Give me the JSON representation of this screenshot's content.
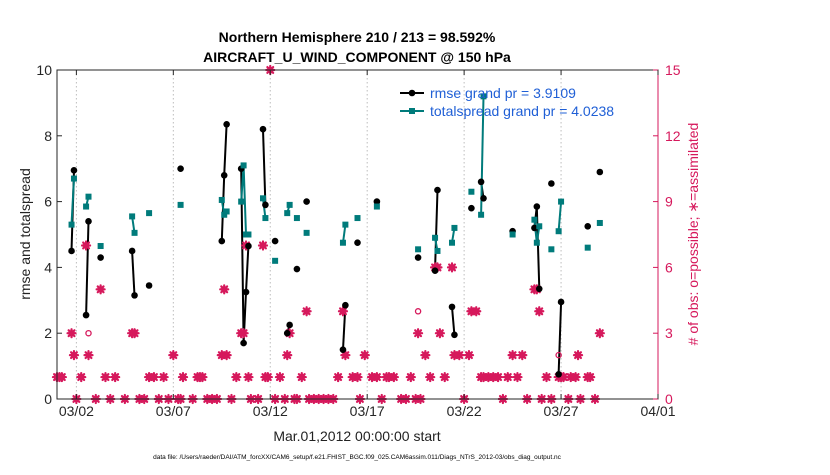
{
  "chart_data": {
    "type": "line",
    "title": "Northern Hemisphere 210 / 213 = 98.592%",
    "subtitle": "AIRCRAFT_U_WIND_COMPONENT @ 150 hPa",
    "xlabel": "Mar.01,2012 00:00:00 start",
    "ylabel": "rmse and totalspread",
    "y2label": "# of obs: o=possible; ∗=assimilated",
    "footnote": "data file: /Users/raeder/DAI/ATM_forcXX/CAM6_setup/f.e21.FHIST_BGC.f09_025.CAM6assim.011/Diags_NTrS_2012-03/obs_diag_output.nc",
    "xlim": [
      0,
      31
    ],
    "ylim": [
      0,
      10
    ],
    "y2lim": [
      0,
      15
    ],
    "xticks": [
      1,
      6,
      11,
      16,
      21,
      26,
      31
    ],
    "xtick_labels": [
      "03/02",
      "03/07",
      "03/12",
      "03/17",
      "03/22",
      "03/27",
      "04/01"
    ],
    "yticks": [
      0,
      2,
      4,
      6,
      8,
      10
    ],
    "y2ticks": [
      0,
      3,
      6,
      9,
      12,
      15
    ],
    "grid": "vertical dotted",
    "legend_position": "top-right",
    "colors": {
      "rmse": "#000000",
      "spread": "#007b7b",
      "obs": "#d6195c",
      "legend_text": "#1f5fd6"
    },
    "series": [
      {
        "name": "rmse",
        "legend": "rmse grand pr = 3.9109",
        "points": [
          [
            0.75,
            4.5
          ],
          [
            0.875,
            6.95
          ],
          [
            1.5,
            2.55
          ],
          [
            1.625,
            5.4
          ],
          [
            2.25,
            4.3
          ],
          [
            3.875,
            4.5
          ],
          [
            4.0,
            3.15
          ],
          [
            4.75,
            3.45
          ],
          [
            6.375,
            7.0
          ],
          [
            8.5,
            4.8
          ],
          [
            8.625,
            6.8
          ],
          [
            8.75,
            8.35
          ],
          [
            9.5,
            7.0
          ],
          [
            9.625,
            1.7
          ],
          [
            9.75,
            3.25
          ],
          [
            9.875,
            4.65
          ],
          [
            10.625,
            8.2
          ],
          [
            10.75,
            5.9
          ],
          [
            11.25,
            4.8
          ],
          [
            11.875,
            2.0
          ],
          [
            12.0,
            2.25
          ],
          [
            12.375,
            3.95
          ],
          [
            12.875,
            6.0
          ],
          [
            14.75,
            1.5
          ],
          [
            14.875,
            2.85
          ],
          [
            15.5,
            4.75
          ],
          [
            16.5,
            6.0
          ],
          [
            18.625,
            4.3
          ],
          [
            19.5,
            3.9
          ],
          [
            19.625,
            6.35
          ],
          [
            20.375,
            2.8
          ],
          [
            20.5,
            1.95
          ],
          [
            21.375,
            5.8
          ],
          [
            21.875,
            6.6
          ],
          [
            22.0,
            6.1
          ],
          [
            23.5,
            5.1
          ],
          [
            24.625,
            5.2
          ],
          [
            24.75,
            5.85
          ],
          [
            24.875,
            3.35
          ],
          [
            25.5,
            6.55
          ],
          [
            25.875,
            0.75
          ],
          [
            26.0,
            2.95
          ],
          [
            27.375,
            5.25
          ],
          [
            28.0,
            6.9
          ]
        ]
      },
      {
        "name": "totalspread",
        "legend": "totalspread grand pr = 4.0238",
        "points": [
          [
            0.75,
            5.3
          ],
          [
            0.875,
            6.7
          ],
          [
            1.5,
            5.85
          ],
          [
            1.625,
            6.15
          ],
          [
            2.25,
            4.65
          ],
          [
            3.875,
            5.55
          ],
          [
            4.0,
            5.05
          ],
          [
            4.75,
            5.65
          ],
          [
            6.375,
            5.9
          ],
          [
            8.5,
            6.05
          ],
          [
            8.625,
            5.6
          ],
          [
            8.75,
            5.7
          ],
          [
            9.5,
            6.0
          ],
          [
            9.625,
            7.1
          ],
          [
            9.75,
            5.0
          ],
          [
            9.875,
            5.0
          ],
          [
            10.625,
            6.1
          ],
          [
            10.75,
            5.5
          ],
          [
            11.25,
            4.2
          ],
          [
            11.875,
            5.65
          ],
          [
            12.0,
            5.9
          ],
          [
            12.375,
            5.5
          ],
          [
            12.875,
            5.05
          ],
          [
            14.75,
            4.75
          ],
          [
            14.875,
            5.3
          ],
          [
            15.5,
            5.5
          ],
          [
            16.5,
            5.85
          ],
          [
            18.625,
            4.55
          ],
          [
            19.5,
            4.9
          ],
          [
            19.625,
            4.5
          ],
          [
            20.375,
            4.75
          ],
          [
            20.5,
            5.2
          ],
          [
            21.375,
            6.3
          ],
          [
            21.875,
            5.6
          ],
          [
            22.0,
            9.2
          ],
          [
            23.5,
            5.0
          ],
          [
            24.625,
            5.45
          ],
          [
            24.75,
            4.75
          ],
          [
            24.875,
            5.25
          ],
          [
            25.5,
            4.55
          ],
          [
            25.875,
            5.1
          ],
          [
            26.0,
            6.0
          ],
          [
            27.375,
            4.6
          ],
          [
            28.0,
            5.35
          ]
        ]
      }
    ],
    "line_segments": [
      [
        0.75,
        0.875
      ],
      [
        1.5,
        1.625
      ],
      [
        3.875,
        4.0
      ],
      [
        8.5,
        8.625,
        8.75
      ],
      [
        9.5,
        9.625,
        9.75,
        9.875
      ],
      [
        10.625,
        10.75
      ],
      [
        11.875,
        12.0
      ],
      [
        14.75,
        14.875
      ],
      [
        19.5,
        19.625
      ],
      [
        20.375,
        20.5
      ],
      [
        21.875,
        22.0
      ],
      [
        24.625,
        24.75,
        24.875
      ],
      [
        25.875,
        26.0
      ]
    ],
    "obs_possible": [
      [
        0,
        1
      ],
      [
        0.125,
        1
      ],
      [
        0.25,
        1
      ],
      [
        0.75,
        3
      ],
      [
        0.875,
        2
      ],
      [
        1.0,
        0
      ],
      [
        1.25,
        1
      ],
      [
        1.5,
        7
      ],
      [
        1.625,
        3
      ],
      [
        2.0,
        0
      ],
      [
        2.25,
        5
      ],
      [
        2.5,
        1
      ],
      [
        2.75,
        0
      ],
      [
        3.0,
        1
      ],
      [
        3.5,
        0
      ],
      [
        3.875,
        3
      ],
      [
        4.0,
        3
      ],
      [
        4.25,
        0
      ],
      [
        4.5,
        0
      ],
      [
        4.75,
        1
      ],
      [
        5.0,
        1
      ],
      [
        5.25,
        0
      ],
      [
        5.5,
        1
      ],
      [
        5.75,
        0
      ],
      [
        6.0,
        2
      ],
      [
        6.25,
        0
      ],
      [
        6.375,
        0
      ],
      [
        6.5,
        1
      ],
      [
        7.0,
        0
      ],
      [
        7.25,
        1
      ],
      [
        7.375,
        1
      ],
      [
        7.5,
        1
      ],
      [
        7.75,
        0
      ],
      [
        8.0,
        0
      ],
      [
        8.25,
        0
      ],
      [
        8.5,
        2
      ],
      [
        8.625,
        5
      ],
      [
        8.75,
        2
      ],
      [
        9.0,
        0
      ],
      [
        9.25,
        1
      ],
      [
        9.5,
        3
      ],
      [
        9.625,
        3
      ],
      [
        9.75,
        7
      ],
      [
        9.875,
        1
      ],
      [
        10.0,
        0
      ],
      [
        10.375,
        0
      ],
      [
        10.625,
        7
      ],
      [
        10.75,
        1
      ],
      [
        10.875,
        1
      ],
      [
        11.0,
        15
      ],
      [
        11.25,
        0
      ],
      [
        11.5,
        1
      ],
      [
        11.75,
        0
      ],
      [
        11.875,
        2
      ],
      [
        12.0,
        3
      ],
      [
        12.25,
        0
      ],
      [
        12.375,
        0
      ],
      [
        12.625,
        1
      ],
      [
        12.875,
        4
      ],
      [
        13.0,
        0
      ],
      [
        13.25,
        0
      ],
      [
        13.5,
        0
      ],
      [
        13.75,
        0
      ],
      [
        14.0,
        0
      ],
      [
        14.25,
        0
      ],
      [
        14.5,
        1
      ],
      [
        14.75,
        4
      ],
      [
        14.875,
        2
      ],
      [
        15.25,
        1
      ],
      [
        15.5,
        1
      ],
      [
        15.625,
        0
      ],
      [
        15.875,
        2
      ],
      [
        16.25,
        1
      ],
      [
        16.5,
        1
      ],
      [
        16.75,
        0
      ],
      [
        17.0,
        1
      ],
      [
        17.125,
        1
      ],
      [
        17.375,
        1
      ],
      [
        17.75,
        0
      ],
      [
        18.0,
        0
      ],
      [
        18.25,
        1
      ],
      [
        18.5,
        0
      ],
      [
        18.625,
        4
      ],
      [
        18.75,
        0
      ],
      [
        19.0,
        2
      ],
      [
        19.25,
        1
      ],
      [
        19.5,
        6
      ],
      [
        19.625,
        6
      ],
      [
        19.75,
        3
      ],
      [
        20.0,
        1
      ],
      [
        20.375,
        6
      ],
      [
        20.5,
        2
      ],
      [
        20.75,
        2
      ],
      [
        21.0,
        0
      ],
      [
        21.25,
        2
      ],
      [
        21.375,
        4
      ],
      [
        21.625,
        4
      ],
      [
        21.875,
        1
      ],
      [
        22.0,
        1
      ],
      [
        22.25,
        1
      ],
      [
        22.5,
        1
      ],
      [
        22.75,
        1
      ],
      [
        23.0,
        0
      ],
      [
        23.25,
        1
      ],
      [
        23.5,
        2
      ],
      [
        23.75,
        1
      ],
      [
        24.0,
        2
      ],
      [
        24.25,
        0
      ],
      [
        24.625,
        5
      ],
      [
        24.75,
        5
      ],
      [
        24.875,
        4
      ],
      [
        25.0,
        0
      ],
      [
        25.25,
        1
      ],
      [
        25.5,
        0
      ],
      [
        25.875,
        2
      ],
      [
        26.0,
        1
      ],
      [
        26.125,
        1
      ],
      [
        26.375,
        0
      ],
      [
        26.5,
        1
      ],
      [
        26.75,
        1
      ],
      [
        26.875,
        2
      ],
      [
        27.0,
        0
      ],
      [
        27.375,
        1
      ],
      [
        27.5,
        1
      ],
      [
        27.75,
        0
      ],
      [
        28.0,
        3
      ]
    ],
    "obs_assimilated": [
      [
        0,
        1
      ],
      [
        0.125,
        1
      ],
      [
        0.25,
        1
      ],
      [
        0.75,
        3
      ],
      [
        0.875,
        2
      ],
      [
        1.0,
        0
      ],
      [
        1.25,
        1
      ],
      [
        1.5,
        7
      ],
      [
        1.625,
        2
      ],
      [
        2.0,
        0
      ],
      [
        2.25,
        5
      ],
      [
        2.5,
        1
      ],
      [
        2.75,
        0
      ],
      [
        3.0,
        1
      ],
      [
        3.5,
        0
      ],
      [
        3.875,
        3
      ],
      [
        4.0,
        3
      ],
      [
        4.25,
        0
      ],
      [
        4.5,
        0
      ],
      [
        4.75,
        1
      ],
      [
        5.0,
        1
      ],
      [
        5.25,
        0
      ],
      [
        5.5,
        1
      ],
      [
        5.75,
        0
      ],
      [
        6.0,
        2
      ],
      [
        6.25,
        0
      ],
      [
        6.375,
        0
      ],
      [
        6.5,
        1
      ],
      [
        7.0,
        0
      ],
      [
        7.25,
        1
      ],
      [
        7.375,
        1
      ],
      [
        7.5,
        1
      ],
      [
        7.75,
        0
      ],
      [
        8.0,
        0
      ],
      [
        8.25,
        0
      ],
      [
        8.5,
        2
      ],
      [
        8.625,
        5
      ],
      [
        8.75,
        2
      ],
      [
        9.0,
        0
      ],
      [
        9.25,
        1
      ],
      [
        9.5,
        3
      ],
      [
        9.625,
        3
      ],
      [
        9.75,
        7
      ],
      [
        9.875,
        1
      ],
      [
        10.0,
        0
      ],
      [
        10.375,
        0
      ],
      [
        10.625,
        7
      ],
      [
        10.75,
        1
      ],
      [
        10.875,
        1
      ],
      [
        11.0,
        15
      ],
      [
        11.25,
        0
      ],
      [
        11.5,
        1
      ],
      [
        11.75,
        0
      ],
      [
        11.875,
        2
      ],
      [
        12.0,
        3
      ],
      [
        12.25,
        0
      ],
      [
        12.375,
        0
      ],
      [
        12.625,
        1
      ],
      [
        12.875,
        4
      ],
      [
        13.0,
        0
      ],
      [
        13.25,
        0
      ],
      [
        13.5,
        0
      ],
      [
        13.75,
        0
      ],
      [
        14.0,
        0
      ],
      [
        14.25,
        0
      ],
      [
        14.5,
        1
      ],
      [
        14.75,
        4
      ],
      [
        14.875,
        2
      ],
      [
        15.25,
        1
      ],
      [
        15.5,
        1
      ],
      [
        15.625,
        0
      ],
      [
        15.875,
        2
      ],
      [
        16.25,
        1
      ],
      [
        16.5,
        1
      ],
      [
        16.75,
        0
      ],
      [
        17.0,
        1
      ],
      [
        17.125,
        1
      ],
      [
        17.375,
        1
      ],
      [
        17.75,
        0
      ],
      [
        18.0,
        0
      ],
      [
        18.25,
        1
      ],
      [
        18.5,
        0
      ],
      [
        18.625,
        3
      ],
      [
        18.75,
        0
      ],
      [
        19.0,
        2
      ],
      [
        19.25,
        1
      ],
      [
        19.5,
        6
      ],
      [
        19.625,
        6
      ],
      [
        19.75,
        3
      ],
      [
        20.0,
        1
      ],
      [
        20.375,
        6
      ],
      [
        20.5,
        2
      ],
      [
        20.75,
        2
      ],
      [
        21.0,
        0
      ],
      [
        21.25,
        2
      ],
      [
        21.375,
        4
      ],
      [
        21.625,
        4
      ],
      [
        21.875,
        1
      ],
      [
        22.0,
        1
      ],
      [
        22.25,
        1
      ],
      [
        22.5,
        1
      ],
      [
        22.75,
        1
      ],
      [
        23.0,
        0
      ],
      [
        23.25,
        1
      ],
      [
        23.5,
        2
      ],
      [
        23.75,
        1
      ],
      [
        24.0,
        2
      ],
      [
        24.25,
        0
      ],
      [
        24.625,
        5
      ],
      [
        24.75,
        5
      ],
      [
        24.875,
        4
      ],
      [
        25.0,
        0
      ],
      [
        25.25,
        1
      ],
      [
        25.5,
        0
      ],
      [
        25.875,
        1
      ],
      [
        26.0,
        1
      ],
      [
        26.125,
        1
      ],
      [
        26.375,
        0
      ],
      [
        26.5,
        1
      ],
      [
        26.75,
        1
      ],
      [
        26.875,
        2
      ],
      [
        27.0,
        0
      ],
      [
        27.375,
        1
      ],
      [
        27.5,
        1
      ],
      [
        27.75,
        0
      ],
      [
        28.0,
        3
      ]
    ]
  }
}
